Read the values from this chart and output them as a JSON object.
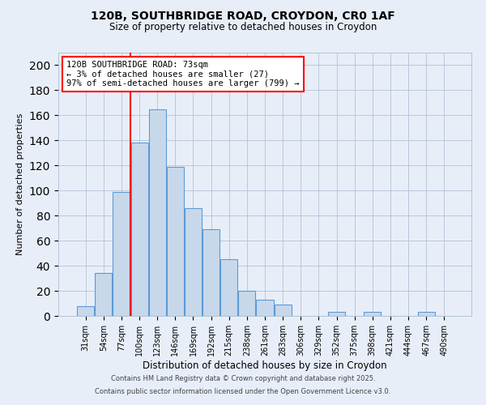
{
  "title_line1": "120B, SOUTHBRIDGE ROAD, CROYDON, CR0 1AF",
  "title_line2": "Size of property relative to detached houses in Croydon",
  "xlabel": "Distribution of detached houses by size in Croydon",
  "ylabel": "Number of detached properties",
  "categories": [
    "31sqm",
    "54sqm",
    "77sqm",
    "100sqm",
    "123sqm",
    "146sqm",
    "169sqm",
    "192sqm",
    "215sqm",
    "238sqm",
    "261sqm",
    "283sqm",
    "306sqm",
    "329sqm",
    "352sqm",
    "375sqm",
    "398sqm",
    "421sqm",
    "444sqm",
    "467sqm",
    "490sqm"
  ],
  "values": [
    8,
    34,
    99,
    138,
    165,
    119,
    86,
    69,
    45,
    20,
    13,
    9,
    0,
    0,
    3,
    0,
    3,
    0,
    0,
    3,
    0
  ],
  "bar_color": "#c8d8eb",
  "bar_edge_color": "#5b9bd5",
  "background_color": "#e8eef8",
  "grid_color": "#b0c4d8",
  "vline_x_index": 2,
  "vline_color": "red",
  "annotation_text": "120B SOUTHBRIDGE ROAD: 73sqm\n← 3% of detached houses are smaller (27)\n97% of semi-detached houses are larger (799) →",
  "annotation_box_color": "white",
  "annotation_box_edge": "red",
  "footnote1": "Contains HM Land Registry data © Crown copyright and database right 2025.",
  "footnote2": "Contains public sector information licensed under the Open Government Licence v3.0.",
  "ylim": [
    0,
    210
  ],
  "yticks": [
    0,
    20,
    40,
    60,
    80,
    100,
    120,
    140,
    160,
    180,
    200
  ]
}
